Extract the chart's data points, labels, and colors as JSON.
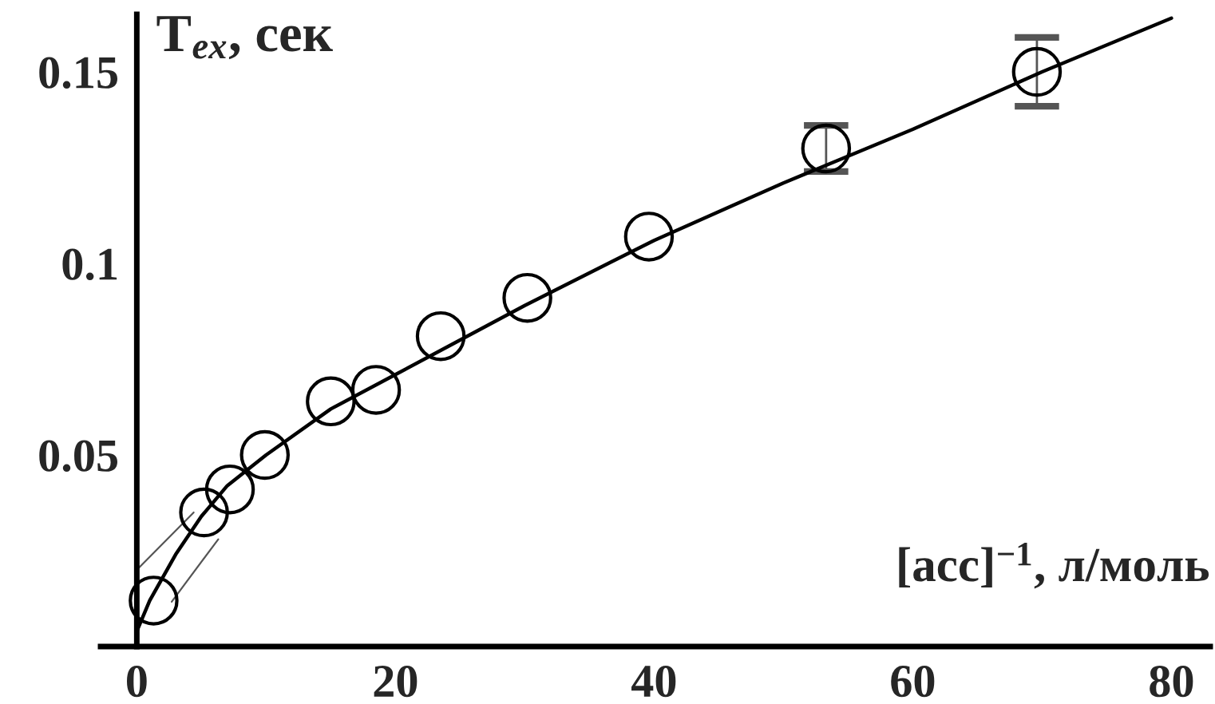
{
  "chart_data": {
    "type": "scatter",
    "xlabel": "[acc]$^{−1}$, л/моль",
    "ylabel": "T$_{ex}$, сек",
    "xlim": [
      -2.8,
      83
    ],
    "ylim": [
      0,
      0.165
    ],
    "xticks": [
      0,
      20,
      40,
      60,
      80
    ],
    "yticks": [
      0.05,
      0.1,
      0.15
    ],
    "grid": false,
    "legend": false,
    "series": [
      {
        "color": "#000000",
        "marker": "circle",
        "x": [
          1.3,
          5.2,
          7.2,
          9.9,
          15,
          18.5,
          23.5,
          30.2,
          39.6,
          53.3,
          69.6
        ],
        "values": [
          0.012,
          0.035,
          0.041,
          0.05,
          0.064,
          0.067,
          0.081,
          0.091,
          0.107,
          0.13,
          0.15
        ],
        "errors": [
          null,
          null,
          null,
          null,
          null,
          null,
          null,
          null,
          null,
          0.006,
          0.009
        ]
      },
      {
        "type": "line",
        "color": "#000000",
        "line_style": "solid",
        "x": [
          0,
          1,
          3,
          5,
          7,
          10,
          15,
          20,
          25,
          30,
          40,
          50,
          60,
          70,
          80
        ],
        "values": [
          0.004,
          0.012,
          0.024,
          0.034,
          0.042,
          0.05,
          0.062,
          0.071,
          0.08,
          0.089,
          0.106,
          0.121,
          0.135,
          0.15,
          0.164
        ]
      },
      {
        "type": "line",
        "color": "#555555",
        "line_style": "solid",
        "x": [
          0,
          4.4
        ],
        "values": [
          0.02,
          0.035
        ]
      },
      {
        "type": "line",
        "color": "#555555",
        "line_style": "solid",
        "x": [
          2.7,
          6.3
        ],
        "values": [
          0.0117,
          0.028
        ]
      }
    ]
  }
}
